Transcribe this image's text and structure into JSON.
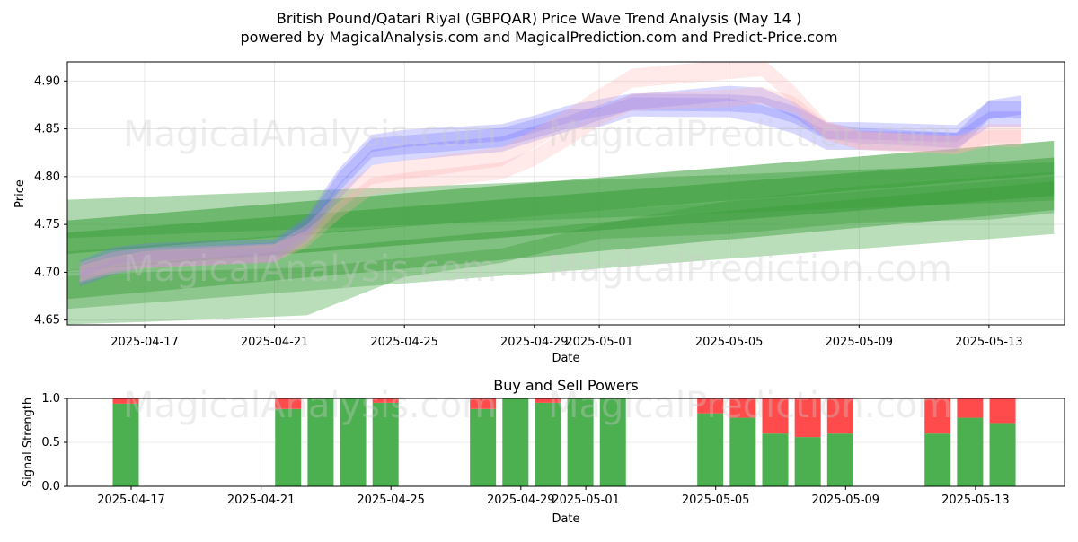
{
  "title": "British Pound/Qatari Riyal (GBPQAR) Price Wave Trend Analysis (May 14 )",
  "subtitle": "powered by MagicalAnalysis.com and MagicalPrediction.com and Predict-Price.com",
  "watermarks": [
    "MagicalAnalysis.com",
    "MagicalPrediction.com",
    "MagicalAnalysis.com",
    "MagicalPrediction.com",
    "MagicalAnalysis.com",
    "MagicalPrediction.com"
  ],
  "colors": {
    "green": "#3a9e3a",
    "red": "#ff4b4b",
    "blue": "#6f6fff",
    "pink": "#ffb0b0"
  },
  "chart_data": [
    {
      "type": "area",
      "xlabel": "Date",
      "ylabel": "Price",
      "ylim": [
        4.645,
        4.92
      ],
      "yticks": [
        4.65,
        4.7,
        4.75,
        4.8,
        4.85,
        4.9
      ],
      "ytick_labels": [
        "4.65",
        "4.70",
        "4.75",
        "4.80",
        "4.85",
        "4.90"
      ],
      "xlim": [
        "2025-04-14",
        "2025-05-16"
      ],
      "xticks": [
        "2025-04-17",
        "2025-04-21",
        "2025-04-25",
        "2025-04-29",
        "2025-05-01",
        "2025-05-05",
        "2025-05-09",
        "2025-05-13"
      ],
      "xtick_labels": [
        "2025-04-17",
        "2025-04-21",
        "2025-04-25",
        "2025-04-29",
        "2025-05-01",
        "2025-05-05",
        "2025-05-09",
        "2025-05-13"
      ],
      "grid": true,
      "price_dates": [
        "2025-04-15",
        "2025-04-16",
        "2025-04-17",
        "2025-04-21",
        "2025-04-22",
        "2025-04-23",
        "2025-04-24",
        "2025-04-25",
        "2025-04-28",
        "2025-04-29",
        "2025-04-30",
        "2025-05-01",
        "2025-05-02",
        "2025-05-05",
        "2025-05-06",
        "2025-05-07",
        "2025-05-08",
        "2025-05-09",
        "2025-05-12",
        "2025-05-13",
        "2025-05-14"
      ],
      "price_waves": [
        {
          "offsets": [
            0,
            0.004,
            0.002,
            0.001,
            0.01,
            0.03,
            0.04,
            0.038,
            0.035,
            0.03,
            0.02,
            0.0,
            -0.005,
            -0.01,
            -0.02,
            -0.02,
            -0.01,
            0.0,
            0.003,
            0.03,
            0.035
          ],
          "width": 0.02,
          "color": "blue"
        },
        {
          "offsets": [
            0.005,
            0.01,
            0.008,
            0.006,
            0.015,
            0.035,
            0.045,
            0.045,
            0.04,
            0.035,
            0.025,
            0.01,
            0.0,
            -0.005,
            -0.01,
            -0.01,
            0.0,
            0.01,
            0.012,
            0.03,
            0.03
          ],
          "width": 0.018,
          "color": "blue"
        },
        {
          "offsets": [
            -0.005,
            -0.002,
            0.0,
            -0.002,
            0.005,
            0.02,
            0.03,
            0.03,
            0.028,
            0.025,
            0.015,
            0.005,
            0.0,
            0.005,
            0.0,
            -0.005,
            0.0,
            0.005,
            0.005,
            0.02,
            0.02
          ],
          "width": 0.016,
          "color": "blue"
        },
        {
          "offsets": [
            0,
            0,
            0,
            0,
            0,
            0,
            0,
            0,
            0,
            0,
            0,
            0,
            0,
            0,
            0,
            0,
            0,
            0,
            0,
            0,
            0
          ],
          "width": 0.018,
          "color": "pink"
        },
        {
          "offsets": [
            0.002,
            0.004,
            0.002,
            0.0,
            0.005,
            0.01,
            0.012,
            0.012,
            0.015,
            0.02,
            0.02,
            0.02,
            0.025,
            0.03,
            0.03,
            0.01,
            0.0,
            0.0,
            0.0,
            0.005,
            0.005
          ],
          "width": 0.02,
          "color": "pink"
        }
      ],
      "price_center": [
        4.698,
        4.707,
        4.713,
        4.72,
        4.735,
        4.765,
        4.79,
        4.795,
        4.806,
        4.82,
        4.84,
        4.862,
        4.878,
        4.882,
        4.885,
        4.875,
        4.848,
        4.838,
        4.833,
        4.84,
        4.84
      ],
      "trend_bands": [
        {
          "start": [
            "2025-04-14",
            4.72
          ],
          "end": [
            "2025-05-15",
            4.8
          ],
          "width": 0.04,
          "alpha": 0.55
        },
        {
          "start": [
            "2025-04-14",
            4.735
          ],
          "end": [
            "2025-05-15",
            4.82
          ],
          "width": 0.035,
          "alpha": 0.55
        },
        {
          "start": [
            "2025-04-14",
            4.755
          ],
          "end": [
            "2025-05-15",
            4.795
          ],
          "width": 0.04,
          "alpha": 0.4
        },
        {
          "start": [
            "2025-04-14",
            4.69
          ],
          "end": [
            "2025-05-15",
            4.77
          ],
          "width": 0.06,
          "alpha": 0.35
        },
        {
          "start": [
            "2025-04-14",
            4.685
          ],
          "end": [
            "2025-05-15",
            4.78
          ],
          "width": 0.03,
          "alpha": 0.45
        }
      ],
      "low_green_dates": [
        "2025-04-14",
        "2025-04-17",
        "2025-04-22",
        "2025-04-25",
        "2025-04-28",
        "2025-05-01",
        "2025-05-05",
        "2025-05-09",
        "2025-05-13",
        "2025-05-15"
      ],
      "low_green_upper": [
        4.695,
        4.7,
        4.705,
        4.715,
        4.725,
        4.75,
        4.775,
        4.79,
        4.8,
        4.805
      ],
      "low_green_lower": [
        4.645,
        4.648,
        4.655,
        4.695,
        4.71,
        4.735,
        4.74,
        4.752,
        4.755,
        4.762
      ]
    },
    {
      "type": "bar",
      "title": "Buy and Sell Powers",
      "xlabel": "Date",
      "ylabel": "Signal Strength",
      "ylim": [
        0,
        1.0
      ],
      "yticks": [
        0.0,
        0.5,
        1.0
      ],
      "ytick_labels": [
        "0.0",
        "0.5",
        "1.0"
      ],
      "xtick_labels": [
        "2025-04-17",
        "2025-04-21",
        "2025-04-25",
        "2025-04-29",
        "2025-05-01",
        "2025-05-05",
        "2025-05-09",
        "2025-05-13"
      ],
      "grid": true,
      "series": [
        {
          "name": "buy",
          "color": "#4caf50"
        },
        {
          "name": "sell",
          "color": "#ff4b4b"
        }
      ],
      "dates": [
        "2025-04-17",
        "2025-04-22",
        "2025-04-23",
        "2025-04-24",
        "2025-04-25",
        "2025-04-28",
        "2025-04-29",
        "2025-04-30",
        "2025-05-01",
        "2025-05-02",
        "2025-05-05",
        "2025-05-06",
        "2025-05-07",
        "2025-05-08",
        "2025-05-09",
        "2025-05-12",
        "2025-05-13",
        "2025-05-14"
      ],
      "buy": [
        0.94,
        0.88,
        1.0,
        1.0,
        0.95,
        0.88,
        1.0,
        0.95,
        1.0,
        1.0,
        0.83,
        0.78,
        0.6,
        0.56,
        0.6,
        0.6,
        0.78,
        0.72
      ],
      "sell": [
        0.06,
        0.12,
        0.0,
        0.0,
        0.05,
        0.12,
        0.0,
        0.05,
        0.0,
        0.0,
        0.17,
        0.22,
        0.4,
        0.44,
        0.4,
        0.4,
        0.22,
        0.28
      ]
    }
  ]
}
